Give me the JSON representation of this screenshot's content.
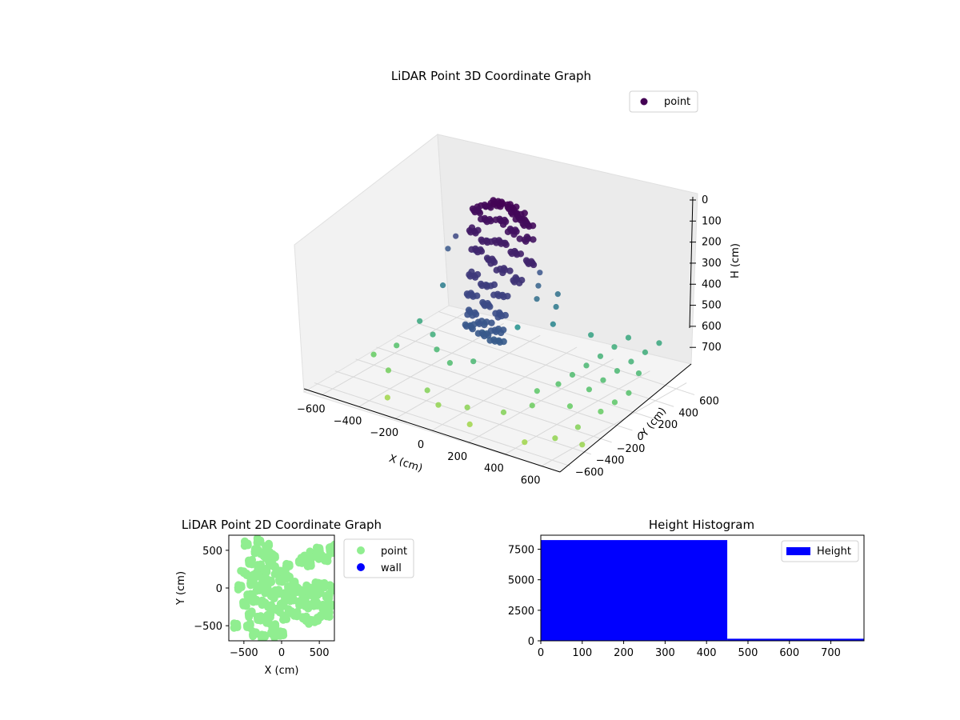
{
  "colors": {
    "point_2d": "#90ee90",
    "wall_2d": "#0000ff",
    "hist_bar": "#0000ff",
    "legend_3d_marker": "#440154"
  },
  "chart_data": [
    {
      "type": "scatter",
      "projection": "3d",
      "title": "LiDAR Point 3D Coordinate Graph",
      "xlabel": "X (cm)",
      "ylabel": "Y (cm)",
      "zlabel": "H (cm)",
      "xticks": [
        "−600",
        "−400",
        "−200",
        "0",
        "200",
        "400",
        "600"
      ],
      "yticks": [
        "−600",
        "−400",
        "−200",
        "0",
        "200",
        "400",
        "600"
      ],
      "zticks": [
        "0",
        "100",
        "200",
        "300",
        "400",
        "500",
        "600",
        "700"
      ],
      "xlim": [
        -700,
        700
      ],
      "ylim": [
        -700,
        700
      ],
      "zlim": [
        0,
        760
      ],
      "z_inverted": true,
      "colormap": "viridis",
      "legend": {
        "label": "point",
        "placement": "top-right"
      },
      "series": [
        {
          "name": "point",
          "points": [
            {
              "x": -180,
              "y": 140,
              "z": 40
            },
            {
              "x": -140,
              "y": 170,
              "z": 20
            },
            {
              "x": -100,
              "y": 150,
              "z": 10
            },
            {
              "x": -60,
              "y": 180,
              "z": 20
            },
            {
              "x": -20,
              "y": 160,
              "z": 30
            },
            {
              "x": 20,
              "y": 140,
              "z": 40
            },
            {
              "x": 60,
              "y": 120,
              "z": 50
            },
            {
              "x": -220,
              "y": 110,
              "z": 60
            },
            {
              "x": -160,
              "y": 90,
              "z": 80
            },
            {
              "x": -80,
              "y": 110,
              "z": 70
            },
            {
              "x": 0,
              "y": 90,
              "z": 90
            },
            {
              "x": 80,
              "y": 80,
              "z": 100
            },
            {
              "x": -200,
              "y": 60,
              "z": 130
            },
            {
              "x": -120,
              "y": 50,
              "z": 150
            },
            {
              "x": -40,
              "y": 60,
              "z": 140
            },
            {
              "x": 40,
              "y": 40,
              "z": 160
            },
            {
              "x": 120,
              "y": 30,
              "z": 180
            },
            {
              "x": -170,
              "y": 20,
              "z": 200
            },
            {
              "x": -90,
              "y": 10,
              "z": 220
            },
            {
              "x": -10,
              "y": 0,
              "z": 240
            },
            {
              "x": 70,
              "y": -10,
              "z": 260
            },
            {
              "x": -150,
              "y": -30,
              "z": 290
            },
            {
              "x": -70,
              "y": -40,
              "z": 310
            },
            {
              "x": 10,
              "y": -50,
              "z": 330
            },
            {
              "x": -130,
              "y": -80,
              "z": 360
            },
            {
              "x": -50,
              "y": -90,
              "z": 380
            },
            {
              "x": 30,
              "y": -100,
              "z": 400
            },
            {
              "x": -110,
              "y": -130,
              "z": 420
            },
            {
              "x": -30,
              "y": -140,
              "z": 440
            },
            {
              "x": 50,
              "y": -150,
              "z": 450
            },
            {
              "x": -90,
              "y": -170,
              "z": 460
            },
            {
              "x": -10,
              "y": -180,
              "z": 470
            },
            {
              "x": 70,
              "y": -190,
              "z": 480
            },
            {
              "x": -300,
              "y": 60,
              "z": 180
            },
            {
              "x": -320,
              "y": 20,
              "z": 230
            },
            {
              "x": 160,
              "y": 60,
              "z": 220
            },
            {
              "x": 180,
              "y": 10,
              "z": 260
            },
            {
              "x": 200,
              "y": -40,
              "z": 300
            },
            {
              "x": -280,
              "y": -100,
              "z": 350
            },
            {
              "x": 140,
              "y": -120,
              "z": 420
            },
            {
              "x": -350,
              "y": -200,
              "z": 500
            },
            {
              "x": -250,
              "y": -250,
              "z": 520
            },
            {
              "x": 230,
              "y": 110,
              "z": 310
            },
            {
              "x": 260,
              "y": 40,
              "z": 340
            },
            {
              "x": 300,
              "y": -60,
              "z": 380
            },
            {
              "x": -200,
              "y": -300,
              "z": 560
            },
            {
              "x": -100,
              "y": -350,
              "z": 580
            },
            {
              "x": 0,
              "y": -300,
              "z": 560
            },
            {
              "x": -420,
              "y": -300,
              "z": 600
            },
            {
              "x": -500,
              "y": -380,
              "z": 640
            },
            {
              "x": -380,
              "y": -450,
              "z": 660
            },
            {
              "x": -150,
              "y": -480,
              "z": 680
            },
            {
              "x": -50,
              "y": -550,
              "z": 700
            },
            {
              "x": 80,
              "y": -500,
              "z": 690
            },
            {
              "x": 150,
              "y": -600,
              "z": 720
            },
            {
              "x": 250,
              "y": -450,
              "z": 680
            },
            {
              "x": -300,
              "y": -600,
              "z": 720
            },
            {
              "x": 320,
              "y": -250,
              "z": 620
            },
            {
              "x": 380,
              "y": -150,
              "z": 600
            },
            {
              "x": 400,
              "y": -50,
              "z": 580
            },
            {
              "x": 420,
              "y": 50,
              "z": 560
            },
            {
              "x": 440,
              "y": 150,
              "z": 540
            },
            {
              "x": 460,
              "y": 250,
              "z": 520
            },
            {
              "x": 480,
              "y": 350,
              "z": 500
            },
            {
              "x": 350,
              "y": -350,
              "z": 650
            },
            {
              "x": 360,
              "y": 200,
              "z": 480
            },
            {
              "x": 520,
              "y": -100,
              "z": 600
            },
            {
              "x": 540,
              "y": 0,
              "z": 580
            },
            {
              "x": 560,
              "y": 100,
              "z": 560
            },
            {
              "x": 580,
              "y": 200,
              "z": 540
            },
            {
              "x": 600,
              "y": 300,
              "z": 520
            },
            {
              "x": 620,
              "y": 400,
              "z": 500
            },
            {
              "x": 500,
              "y": -250,
              "z": 640
            },
            {
              "x": 640,
              "y": -200,
              "z": 640
            },
            {
              "x": 660,
              "y": -100,
              "z": 620
            },
            {
              "x": 680,
              "y": 0,
              "z": 600
            },
            {
              "x": 650,
              "y": 150,
              "z": 560
            },
            {
              "x": 600,
              "y": -350,
              "z": 680
            },
            {
              "x": 560,
              "y": -500,
              "z": 700
            },
            {
              "x": 680,
              "y": -450,
              "z": 710
            },
            {
              "x": 450,
              "y": -600,
              "z": 720
            }
          ]
        }
      ]
    },
    {
      "type": "scatter",
      "title": "LiDAR Point 2D Coordinate Graph",
      "xlabel": "X (cm)",
      "ylabel": "Y (cm)",
      "xticks": [
        "−500",
        "0",
        "500"
      ],
      "yticks": [
        "−500",
        "0",
        "500"
      ],
      "xlim": [
        -700,
        700
      ],
      "ylim": [
        -700,
        700
      ],
      "legend": {
        "entries": [
          "point",
          "wall"
        ],
        "placement": "outside-right"
      },
      "series": [
        {
          "name": "point",
          "points": [
            [
              -450,
              600
            ],
            [
              -300,
              630
            ],
            [
              -350,
              500
            ],
            [
              -250,
              450
            ],
            [
              -200,
              380
            ],
            [
              -400,
              350
            ],
            [
              -300,
              280
            ],
            [
              -200,
              220
            ],
            [
              -350,
              180
            ],
            [
              -250,
              120
            ],
            [
              -150,
              80
            ],
            [
              -400,
              60
            ],
            [
              -300,
              0
            ],
            [
              -200,
              -40
            ],
            [
              -100,
              -100
            ],
            [
              -350,
              -150
            ],
            [
              -250,
              -200
            ],
            [
              -150,
              -250
            ],
            [
              -50,
              -300
            ],
            [
              -400,
              -350
            ],
            [
              -300,
              -400
            ],
            [
              -200,
              -450
            ],
            [
              -100,
              -500
            ],
            [
              -450,
              -500
            ],
            [
              -350,
              -600
            ],
            [
              -250,
              -650
            ],
            [
              -100,
              -620
            ],
            [
              0,
              -600
            ],
            [
              -50,
              200
            ],
            [
              -100,
              300
            ],
            [
              -150,
              450
            ],
            [
              0,
              100
            ],
            [
              100,
              0
            ],
            [
              200,
              -50
            ],
            [
              300,
              -100
            ],
            [
              400,
              -80
            ],
            [
              500,
              -60
            ],
            [
              600,
              -100
            ],
            [
              150,
              -150
            ],
            [
              250,
              -200
            ],
            [
              350,
              -250
            ],
            [
              450,
              -200
            ],
            [
              550,
              -250
            ],
            [
              650,
              -200
            ],
            [
              100,
              -300
            ],
            [
              200,
              -350
            ],
            [
              300,
              -400
            ],
            [
              400,
              -450
            ],
            [
              500,
              -400
            ],
            [
              600,
              -350
            ],
            [
              50,
              -400
            ],
            [
              0,
              -200
            ],
            [
              100,
              150
            ],
            [
              80,
              300
            ],
            [
              300,
              400
            ],
            [
              400,
              450
            ],
            [
              500,
              420
            ],
            [
              600,
              380
            ],
            [
              650,
              500
            ],
            [
              700,
              550
            ],
            [
              250,
              350
            ],
            [
              -500,
              200
            ],
            [
              -550,
              0
            ],
            [
              -500,
              -200
            ],
            [
              -600,
              -500
            ],
            [
              150,
              50
            ],
            [
              250,
              -20
            ],
            [
              350,
              0
            ],
            [
              450,
              50
            ],
            [
              550,
              30
            ],
            [
              650,
              0
            ],
            [
              -50,
              -50
            ],
            [
              50,
              -100
            ],
            [
              -150,
              -350
            ],
            [
              -250,
              50
            ],
            [
              -450,
              -100
            ],
            [
              -100,
              400
            ],
            [
              -200,
              550
            ],
            [
              380,
              320
            ],
            [
              480,
              500
            ]
          ]
        },
        {
          "name": "wall",
          "points": []
        }
      ]
    },
    {
      "type": "bar",
      "title": "Height Histogram",
      "xticks": [
        "0",
        "100",
        "200",
        "300",
        "400",
        "500",
        "600",
        "700"
      ],
      "yticks": [
        "0",
        "2500",
        "5000",
        "7500"
      ],
      "xlim": [
        0,
        780
      ],
      "ylim": [
        0,
        8650
      ],
      "legend": {
        "entries": [
          "Height"
        ],
        "placement": "top-right"
      },
      "bins": [
        {
          "start": 0,
          "end": 450,
          "count": 8250
        },
        {
          "start": 450,
          "end": 780,
          "count": 170
        }
      ]
    }
  ]
}
